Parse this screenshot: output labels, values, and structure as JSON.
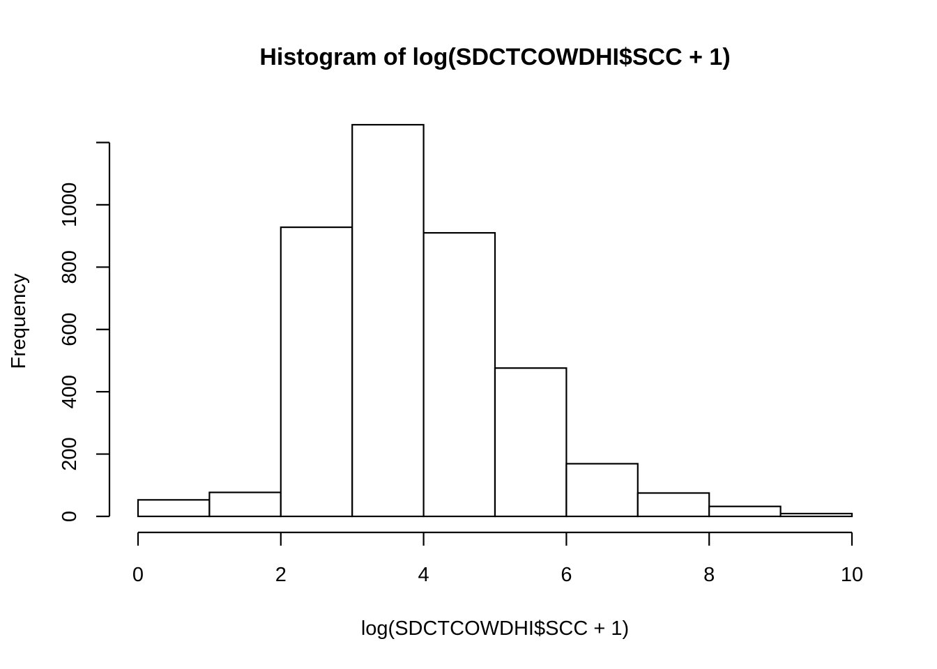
{
  "chart_data": {
    "type": "bar",
    "subtype": "histogram",
    "title": "Histogram of log(SDCTCOWDHI$SCC + 1)",
    "xlabel": "log(SDCTCOWDHI$SCC + 1)",
    "ylabel": "Frequency",
    "bins": [
      {
        "x0": 0,
        "x1": 1,
        "value": 53
      },
      {
        "x0": 1,
        "x1": 2,
        "value": 77
      },
      {
        "x0": 2,
        "x1": 3,
        "value": 928
      },
      {
        "x0": 3,
        "x1": 4,
        "value": 1257
      },
      {
        "x0": 4,
        "x1": 5,
        "value": 910
      },
      {
        "x0": 5,
        "x1": 6,
        "value": 476
      },
      {
        "x0": 6,
        "x1": 7,
        "value": 169
      },
      {
        "x0": 7,
        "x1": 8,
        "value": 75
      },
      {
        "x0": 8,
        "x1": 9,
        "value": 32
      },
      {
        "x0": 9,
        "x1": 10,
        "value": 9
      }
    ],
    "xlim": [
      0,
      10
    ],
    "ylim": [
      0,
      1257
    ],
    "xticks": [
      "0",
      "2",
      "4",
      "6",
      "8",
      "10"
    ],
    "yticks": [
      "0",
      "200",
      "400",
      "600",
      "800",
      "1000"
    ],
    "grid": false,
    "legend": "none",
    "colors": {
      "bar_fill": "#ffffff",
      "bar_stroke": "#000000",
      "axis": "#000000"
    }
  }
}
